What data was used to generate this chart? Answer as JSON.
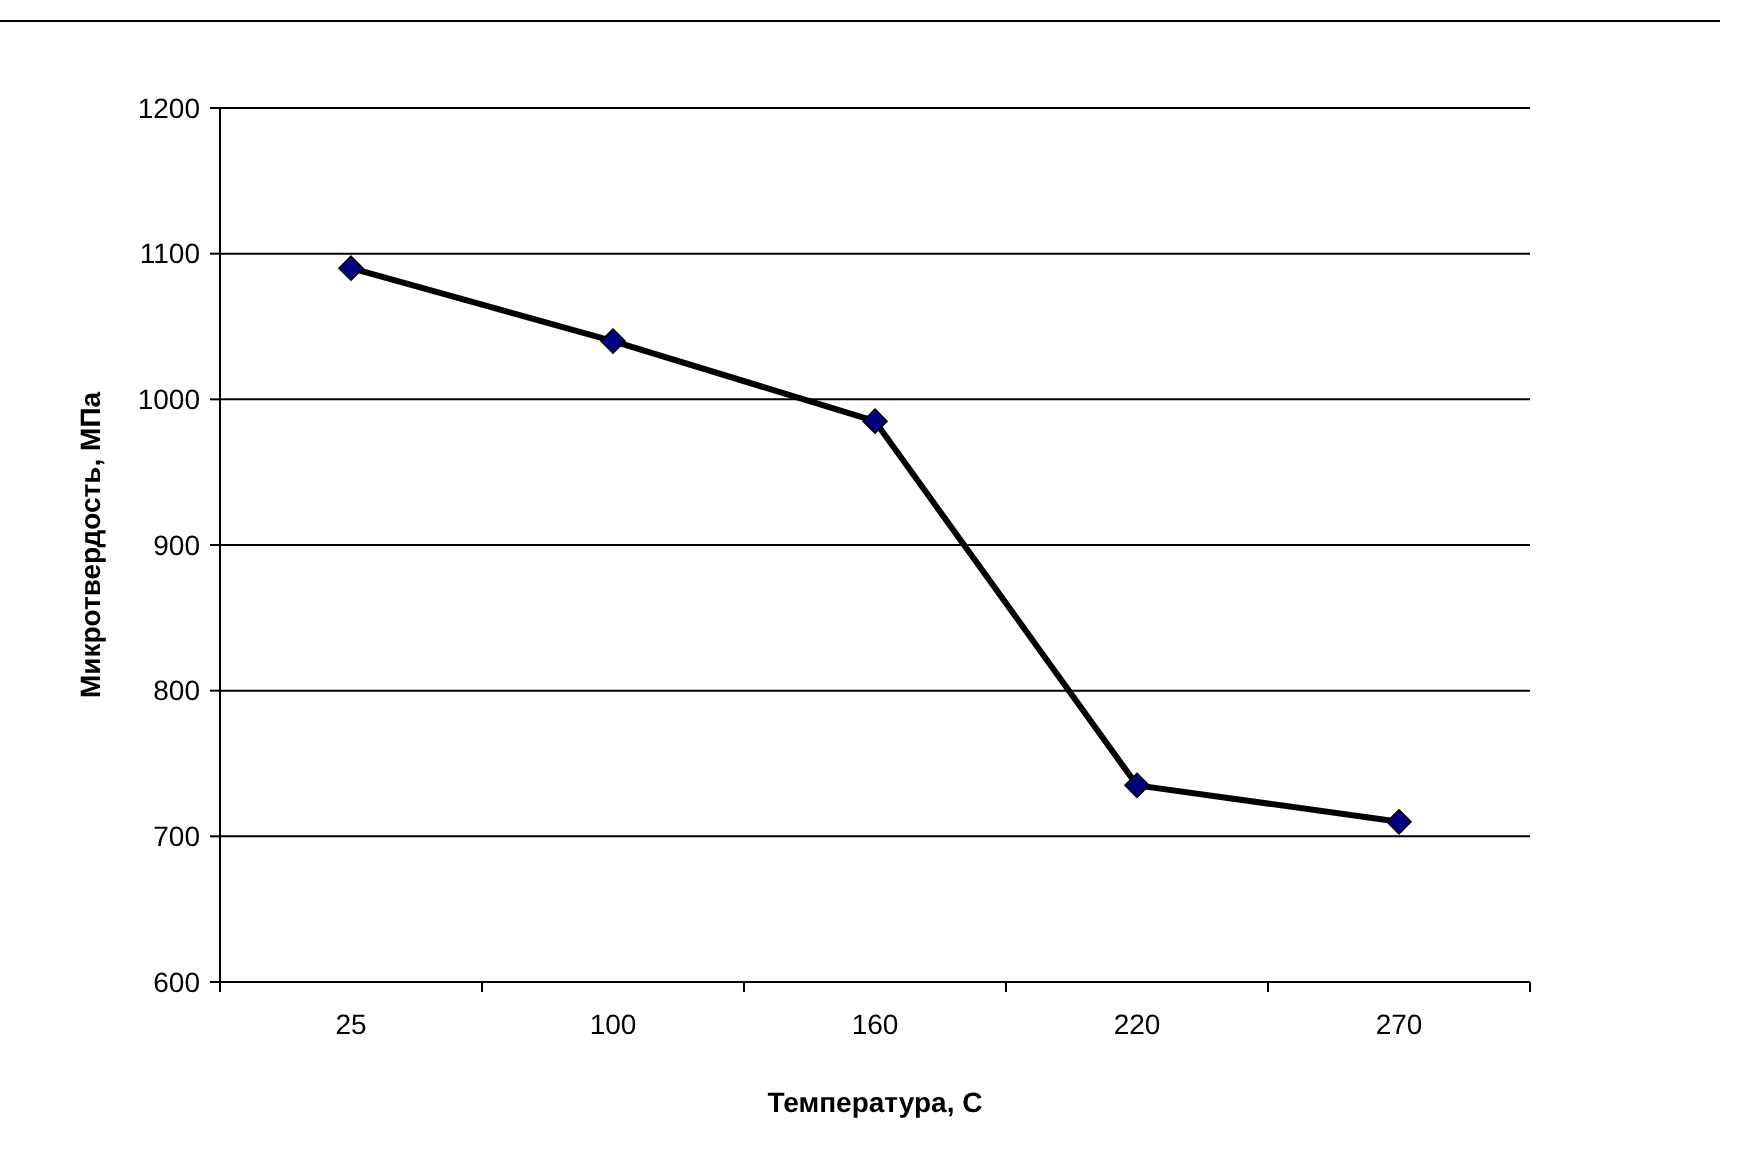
{
  "chart_data": {
    "type": "line",
    "xlabel": "Температура, С",
    "ylabel": "Микротвердость, МПа",
    "categories": [
      "25",
      "100",
      "160",
      "220",
      "270"
    ],
    "series": [
      {
        "color": "#000000",
        "values": [
          1090,
          1040,
          985,
          735,
          710
        ]
      }
    ],
    "ylim": [
      600,
      1200
    ],
    "yticks": [
      600,
      700,
      800,
      900,
      1000,
      1100,
      1200
    ],
    "grid": "y",
    "marker": "diamond",
    "line_style": "solid"
  }
}
